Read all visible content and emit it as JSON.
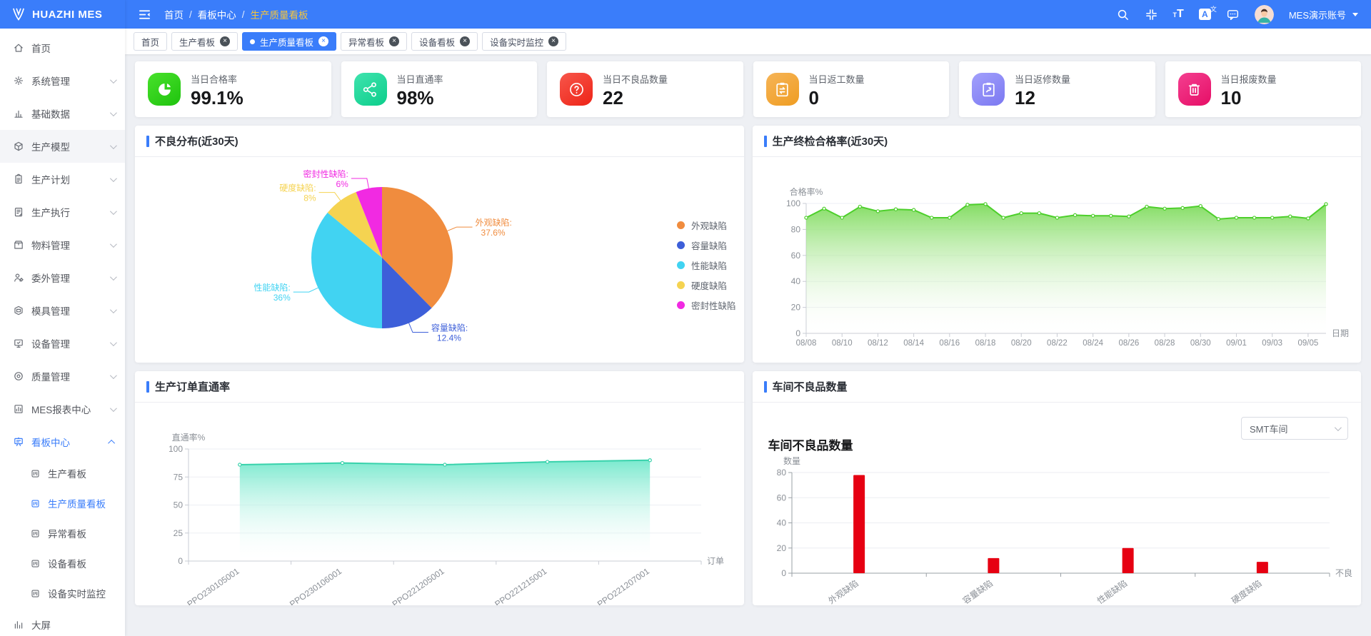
{
  "app": {
    "logo_text": "HUAZHI MES",
    "user": "MES演示账号",
    "icon_t_small": "T",
    "icon_t_large": "T",
    "icon_translate_a": "A",
    "icon_translate_wen": "文",
    "close_glyph": "×"
  },
  "colors": {
    "accent": "#3a7dfa",
    "topbar": "#3a7dfa",
    "breadcrumb_active": "#f5c53c",
    "page_bg": "#eef0f4"
  },
  "breadcrumb": [
    "首页",
    "看板中心",
    "生产质量看板"
  ],
  "header_icons": [
    "search-icon",
    "exit-fullscreen-icon",
    "font-size-icon",
    "translate-icon",
    "message-icon"
  ],
  "tabs": [
    {
      "label": "首页",
      "closable": false,
      "active": false
    },
    {
      "label": "生产看板",
      "closable": true,
      "active": false
    },
    {
      "label": "生产质量看板",
      "closable": true,
      "active": true
    },
    {
      "label": "异常看板",
      "closable": true,
      "active": false
    },
    {
      "label": "设备看板",
      "closable": true,
      "active": false
    },
    {
      "label": "设备实时监控",
      "closable": true,
      "active": false
    }
  ],
  "sidebar": {
    "items": [
      {
        "label": "首页",
        "icon": "home-icon",
        "arrow": null
      },
      {
        "label": "系统管理",
        "icon": "gear-icon",
        "arrow": "down"
      },
      {
        "label": "基础数据",
        "icon": "chart-bar-icon",
        "arrow": "down"
      },
      {
        "label": "生产模型",
        "icon": "cube-icon",
        "arrow": "down",
        "hover": true
      },
      {
        "label": "生产计划",
        "icon": "clipboard-icon",
        "arrow": "down"
      },
      {
        "label": "生产执行",
        "icon": "doc-edit-icon",
        "arrow": "down"
      },
      {
        "label": "物料管理",
        "icon": "box-icon",
        "arrow": "down"
      },
      {
        "label": "委外管理",
        "icon": "user-gear-icon",
        "arrow": "down"
      },
      {
        "label": "模具管理",
        "icon": "mold-icon",
        "arrow": "down"
      },
      {
        "label": "设备管理",
        "icon": "monitor-icon",
        "arrow": "down"
      },
      {
        "label": "质量管理",
        "icon": "quality-icon",
        "arrow": "down"
      },
      {
        "label": "MES报表中心",
        "icon": "report-icon",
        "arrow": "down"
      },
      {
        "label": "看板中心",
        "icon": "board-icon",
        "arrow": "up",
        "active": true,
        "children": [
          {
            "label": "生产看板",
            "active": false
          },
          {
            "label": "生产质量看板",
            "active": true
          },
          {
            "label": "异常看板",
            "active": false
          },
          {
            "label": "设备看板",
            "active": false
          },
          {
            "label": "设备实时监控",
            "active": false
          }
        ]
      },
      {
        "label": "大屏",
        "icon": "bigscreen-icon",
        "arrow": null
      }
    ]
  },
  "kpis": [
    {
      "label": "当日合格率",
      "value": "99.1%",
      "icon": "pie-chart-icon",
      "color_from": "#48e12b",
      "color_to": "#1fc30e"
    },
    {
      "label": "当日直通率",
      "value": "98%",
      "icon": "share-nodes-icon",
      "color_from": "#3fe3ae",
      "color_to": "#0cce8b"
    },
    {
      "label": "当日不良品数量",
      "value": "22",
      "icon": "question-icon",
      "color_from": "#f7564b",
      "color_to": "#ee2417"
    },
    {
      "label": "当日返工数量",
      "value": "0",
      "icon": "rework-icon",
      "color_from": "#f6b457",
      "color_to": "#ef9d22"
    },
    {
      "label": "当日返修数量",
      "value": "12",
      "icon": "repair-icon",
      "color_from": "#a2a0fc",
      "color_to": "#7b78f1"
    },
    {
      "label": "当日报废数量",
      "value": "10",
      "icon": "trash-icon",
      "color_from": "#f43f90",
      "color_to": "#e60e66"
    }
  ],
  "panels": [
    {
      "title": "不良分布(近30天)"
    },
    {
      "title": "生产终检合格率(近30天)"
    },
    {
      "title": "生产订单直通率"
    },
    {
      "title": "车间不良品数量"
    }
  ],
  "workshop_select": {
    "value": "SMT车间"
  },
  "chart_data": [
    {
      "type": "pie",
      "title": "不良分布(近30天)",
      "legend_position": "right",
      "slices": [
        {
          "name": "外观缺陷",
          "value": 37.6,
          "color": "#f08c3e"
        },
        {
          "name": "容量缺陷",
          "value": 12.4,
          "color": "#3d5fd9"
        },
        {
          "name": "性能缺陷",
          "value": 36,
          "color": "#41d3f2"
        },
        {
          "name": "硬度缺陷",
          "value": 8,
          "color": "#f5d351"
        },
        {
          "name": "密封性缺陷",
          "value": 6,
          "color": "#f12ae2"
        }
      ]
    },
    {
      "type": "area",
      "title": "生产终检合格率(近30天)",
      "ylabel": "合格率%",
      "xlabel": "日期",
      "ylim": [
        0,
        100
      ],
      "yticks": [
        0,
        20,
        40,
        60,
        80,
        100
      ],
      "grid": true,
      "band": false,
      "xtick_every": 2,
      "x": [
        "08/08",
        "08/09",
        "08/10",
        "08/11",
        "08/12",
        "08/13",
        "08/14",
        "08/15",
        "08/16",
        "08/17",
        "08/18",
        "08/19",
        "08/20",
        "08/21",
        "08/22",
        "08/23",
        "08/24",
        "08/25",
        "08/26",
        "08/27",
        "08/28",
        "08/29",
        "08/30",
        "08/31",
        "09/01",
        "09/02",
        "09/03",
        "09/04",
        "09/05",
        "09/06"
      ],
      "values": [
        89,
        96,
        89,
        97.5,
        94,
        95.5,
        95,
        89,
        89,
        99,
        99.5,
        89,
        92.5,
        92.5,
        89,
        91,
        90.5,
        90.5,
        90,
        97.5,
        96,
        96.5,
        98,
        88,
        89,
        89,
        89,
        90,
        88.5,
        99.5
      ],
      "line_color": "#4dcf2b",
      "fill_from": "#7edb5c",
      "fill_to": "#ffffff"
    },
    {
      "type": "area",
      "title": "生产订单直通率",
      "ylabel": "直通率%",
      "xlabel": "订单",
      "ylim": [
        0,
        100
      ],
      "yticks": [
        0,
        25,
        50,
        75,
        100
      ],
      "grid": true,
      "band": true,
      "categories": [
        "PPO230105001",
        "PPO230106001",
        "PPO221205001",
        "PPO221215001",
        "PPO221207001"
      ],
      "values": [
        86,
        87.5,
        86,
        88.5,
        90
      ],
      "line_color": "#38d2ab",
      "fill_from": "#74e8cc",
      "fill_to": "#ffffff"
    },
    {
      "type": "bar",
      "title": "车间不良品数量",
      "inner_title": "车间不良品数量",
      "ylabel": "数量",
      "xlabel": "不良",
      "ylim": [
        0,
        80
      ],
      "yticks": [
        0,
        20,
        40,
        60,
        80
      ],
      "grid": true,
      "categories": [
        "外观缺陷",
        "容量缺陷",
        "性能缺陷",
        "硬度缺陷"
      ],
      "values": [
        78,
        12,
        20,
        9
      ],
      "bar_color": "#e60012"
    }
  ]
}
